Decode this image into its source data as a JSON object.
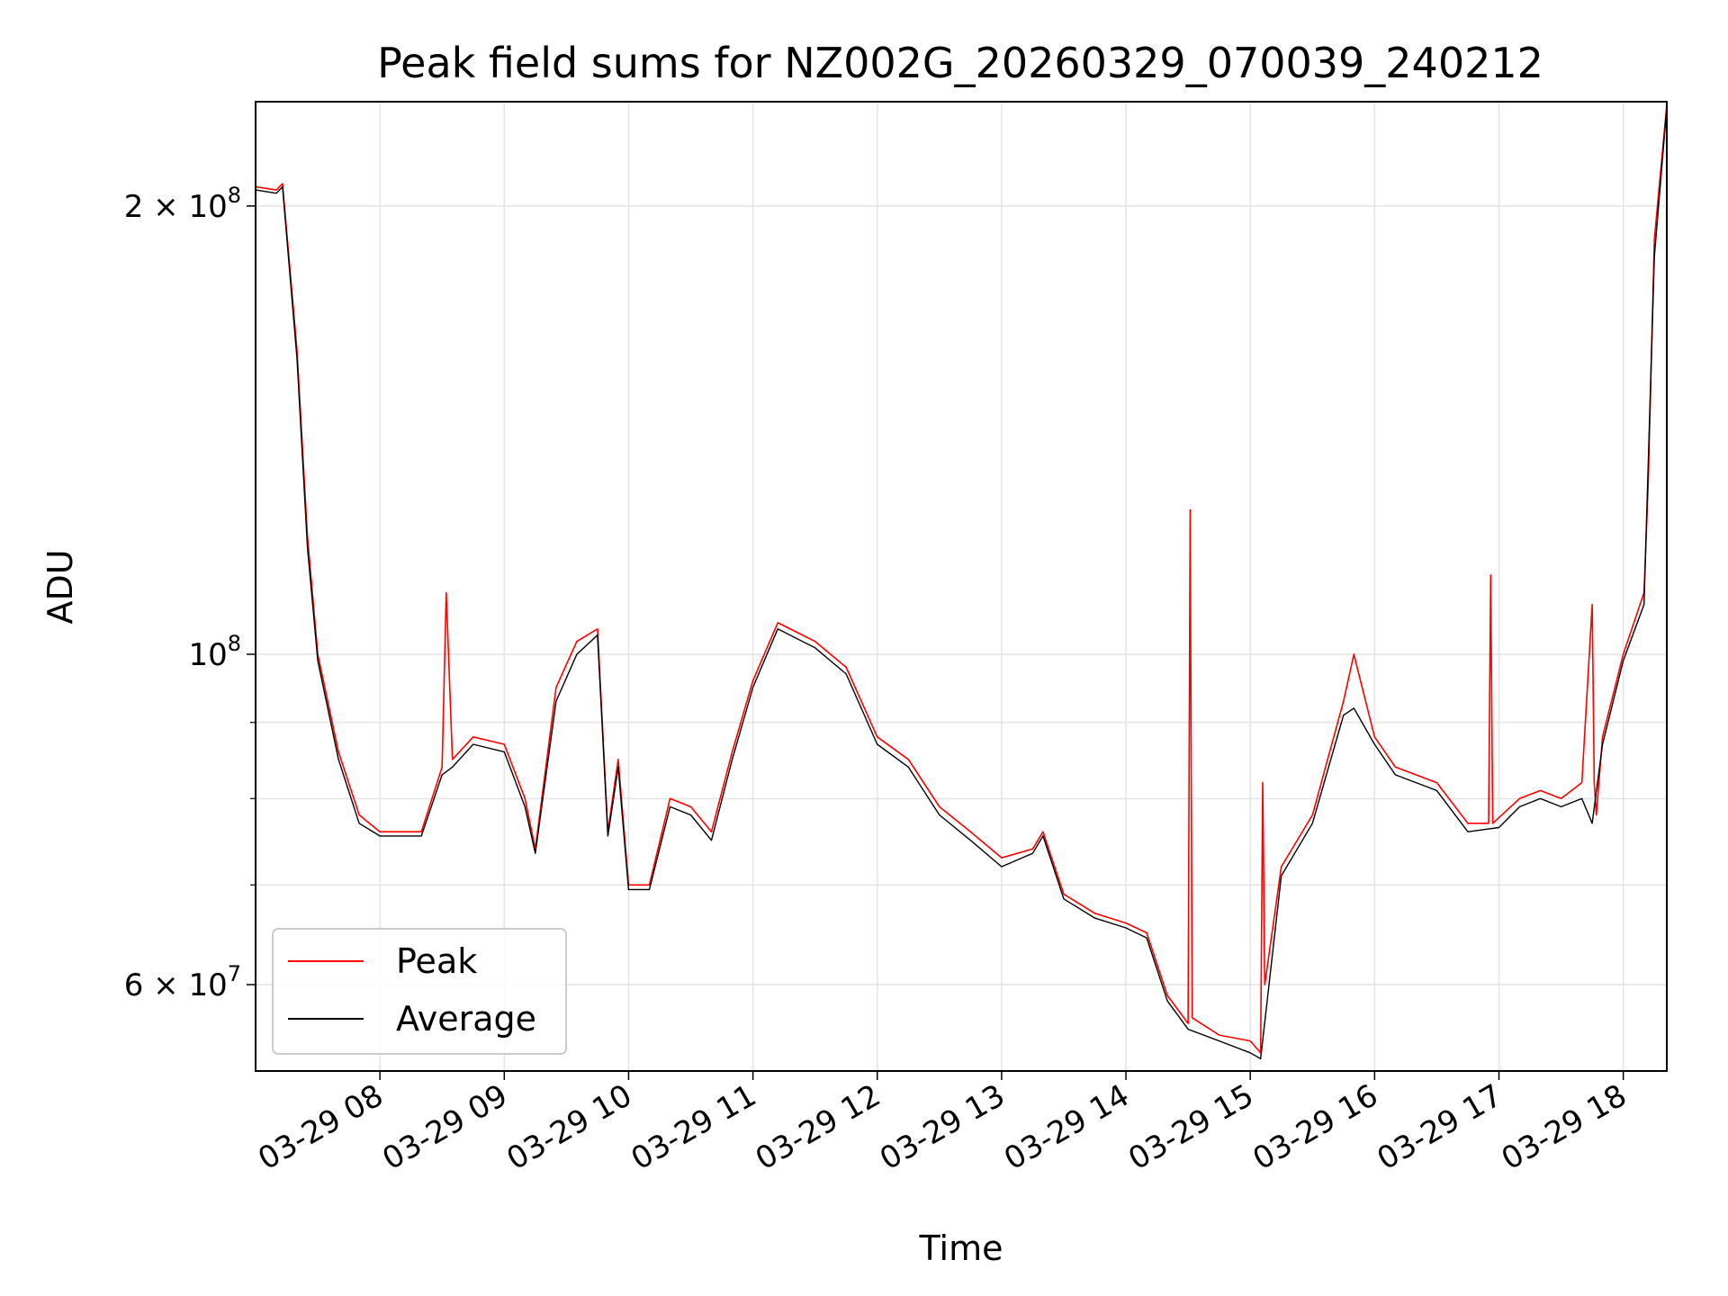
{
  "chart_data": {
    "type": "line",
    "title": "Peak field sums for NZ002G_20260329_070039_240212",
    "xlabel": "Time",
    "ylabel": "ADU",
    "y_scale": "log",
    "ylim": [
      52500000,
      235000000
    ],
    "xlim": [
      "03-29 07:00",
      "03-29 18:21"
    ],
    "grid": true,
    "legend_position": "lower-left",
    "x_ticks": [
      "03-29 08",
      "03-29 09",
      "03-29 10",
      "03-29 11",
      "03-29 12",
      "03-29 13",
      "03-29 14",
      "03-29 15",
      "03-29 16",
      "03-29 17",
      "03-29 18"
    ],
    "y_major_ticks": [
      {
        "value": 60000000,
        "base": "6 × 10",
        "exp": "7"
      },
      {
        "value": 100000000,
        "base": "10",
        "exp": "8"
      },
      {
        "value": 200000000,
        "base": "2 × 10",
        "exp": "8"
      }
    ],
    "y_minor_ticks": [
      70000000,
      80000000,
      90000000
    ],
    "series": [
      {
        "name": "Peak",
        "color": "#ff0000",
        "x": [
          "03-29 07:00",
          "03-29 07:10",
          "03-29 07:13",
          "03-29 07:20",
          "03-29 07:25",
          "03-29 07:30",
          "03-29 07:40",
          "03-29 07:50",
          "03-29 08:00",
          "03-29 08:20",
          "03-29 08:30",
          "03-29 08:32",
          "03-29 08:35",
          "03-29 08:45",
          "03-29 09:00",
          "03-29 09:10",
          "03-29 09:15",
          "03-29 09:25",
          "03-29 09:35",
          "03-29 09:45",
          "03-29 09:50",
          "03-29 09:55",
          "03-29 10:00",
          "03-29 10:10",
          "03-29 10:20",
          "03-29 10:30",
          "03-29 10:40",
          "03-29 10:50",
          "03-29 11:00",
          "03-29 11:12",
          "03-29 11:30",
          "03-29 11:45",
          "03-29 12:00",
          "03-29 12:15",
          "03-29 12:30",
          "03-29 12:45",
          "03-29 13:00",
          "03-29 13:15",
          "03-29 13:20",
          "03-29 13:30",
          "03-29 13:45",
          "03-29 14:00",
          "03-29 14:10",
          "03-29 14:20",
          "03-29 14:30",
          "03-29 14:31",
          "03-29 14:32",
          "03-29 14:45",
          "03-29 15:00",
          "03-29 15:05",
          "03-29 15:06",
          "03-29 15:07",
          "03-29 15:15",
          "03-29 15:30",
          "03-29 15:45",
          "03-29 15:50",
          "03-29 16:00",
          "03-29 16:10",
          "03-29 16:30",
          "03-29 16:45",
          "03-29 16:55",
          "03-29 16:56",
          "03-29 16:57",
          "03-29 17:10",
          "03-29 17:20",
          "03-29 17:30",
          "03-29 17:40",
          "03-29 17:45",
          "03-29 17:46",
          "03-29 17:47",
          "03-29 17:50",
          "03-29 18:00",
          "03-29 18:10",
          "03-29 18:12",
          "03-29 18:15",
          "03-29 18:21"
        ],
        "values": [
          206000000,
          205000000,
          207000000,
          160000000,
          120000000,
          100000000,
          86000000,
          78000000,
          76000000,
          76000000,
          84000000,
          110000000,
          85000000,
          88000000,
          87000000,
          80000000,
          74000000,
          95000000,
          102000000,
          104000000,
          76000000,
          85000000,
          70000000,
          70000000,
          80000000,
          79000000,
          76000000,
          86000000,
          96000000,
          105000000,
          102000000,
          98000000,
          88000000,
          85000000,
          79000000,
          76000000,
          73000000,
          74000000,
          76000000,
          69000000,
          67000000,
          66000000,
          65000000,
          59000000,
          56500000,
          125000000,
          57000000,
          55500000,
          55000000,
          54000000,
          82000000,
          60000000,
          72000000,
          78000000,
          93000000,
          100000000,
          88000000,
          84000000,
          82000000,
          77000000,
          77000000,
          113000000,
          77000000,
          80000000,
          81000000,
          80000000,
          82000000,
          108000000,
          82000000,
          78000000,
          88000000,
          100000000,
          110000000,
          130000000,
          190000000,
          234000000
        ]
      },
      {
        "name": "Average",
        "color": "#000000",
        "x": [
          "03-29 07:00",
          "03-29 07:10",
          "03-29 07:13",
          "03-29 07:20",
          "03-29 07:25",
          "03-29 07:30",
          "03-29 07:40",
          "03-29 07:50",
          "03-29 08:00",
          "03-29 08:20",
          "03-29 08:30",
          "03-29 08:35",
          "03-29 08:45",
          "03-29 09:00",
          "03-29 09:10",
          "03-29 09:15",
          "03-29 09:25",
          "03-29 09:35",
          "03-29 09:45",
          "03-29 09:50",
          "03-29 09:55",
          "03-29 10:00",
          "03-29 10:10",
          "03-29 10:20",
          "03-29 10:30",
          "03-29 10:40",
          "03-29 10:50",
          "03-29 11:00",
          "03-29 11:12",
          "03-29 11:30",
          "03-29 11:45",
          "03-29 12:00",
          "03-29 12:15",
          "03-29 12:30",
          "03-29 12:45",
          "03-29 13:00",
          "03-29 13:15",
          "03-29 13:20",
          "03-29 13:30",
          "03-29 13:45",
          "03-29 14:00",
          "03-29 14:10",
          "03-29 14:20",
          "03-29 14:30",
          "03-29 14:45",
          "03-29 15:00",
          "03-29 15:05",
          "03-29 15:15",
          "03-29 15:30",
          "03-29 15:45",
          "03-29 15:50",
          "03-29 16:00",
          "03-29 16:10",
          "03-29 16:30",
          "03-29 16:45",
          "03-29 17:00",
          "03-29 17:10",
          "03-29 17:20",
          "03-29 17:30",
          "03-29 17:40",
          "03-29 17:45",
          "03-29 17:50",
          "03-29 18:00",
          "03-29 18:10",
          "03-29 18:15",
          "03-29 18:21"
        ],
        "values": [
          205000000,
          204000000,
          206000000,
          158000000,
          118000000,
          99000000,
          85000000,
          77000000,
          75500000,
          75500000,
          83000000,
          84000000,
          87000000,
          86000000,
          79000000,
          73500000,
          93000000,
          100000000,
          103000000,
          75500000,
          84000000,
          69500000,
          69500000,
          79000000,
          78000000,
          75000000,
          85000000,
          95000000,
          104000000,
          101000000,
          97000000,
          87000000,
          84000000,
          78000000,
          75000000,
          72000000,
          73500000,
          75500000,
          68500000,
          66500000,
          65500000,
          64500000,
          58500000,
          56000000,
          55000000,
          54000000,
          53500000,
          71000000,
          77000000,
          91000000,
          92000000,
          87000000,
          83000000,
          81000000,
          76000000,
          76500000,
          79000000,
          80000000,
          79000000,
          80000000,
          77000000,
          87000000,
          99000000,
          108000000,
          185000000,
          233000000
        ]
      }
    ]
  }
}
